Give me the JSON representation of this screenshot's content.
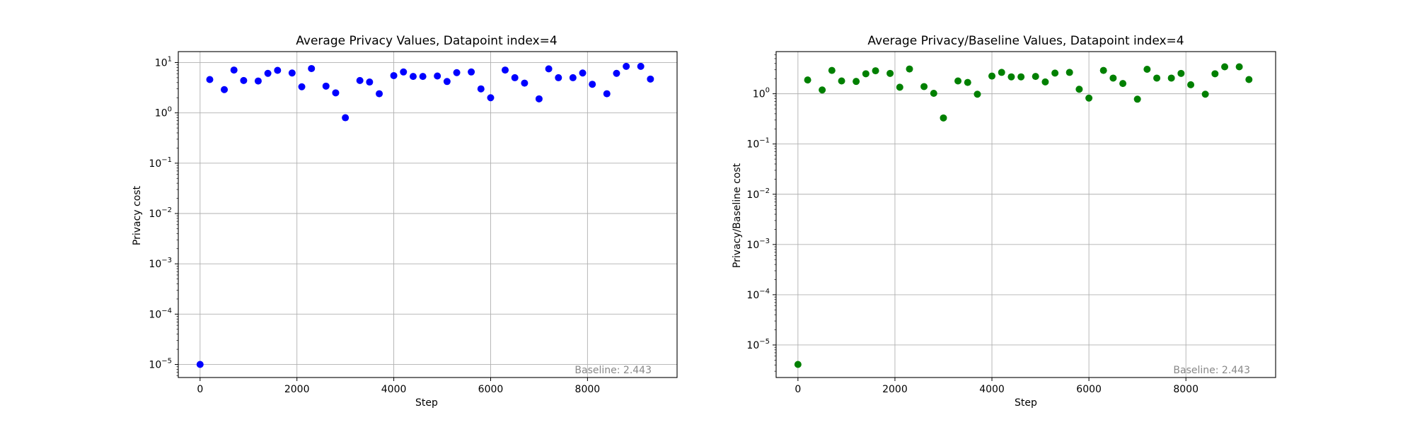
{
  "chart_data": [
    {
      "type": "scatter",
      "title": "Average Privacy Values, Datapoint index=4",
      "xlabel": "Step",
      "ylabel": "Privacy cost",
      "yscale": "log",
      "grid": true,
      "xlim": [
        -450,
        9850
      ],
      "ylim": [
        5.5e-06,
        16.5
      ],
      "xticks": [
        0,
        2000,
        4000,
        6000,
        8000
      ],
      "xtick_labels": [
        "0",
        "2000",
        "4000",
        "6000",
        "8000"
      ],
      "yticks_exp": [
        -5,
        -4,
        -3,
        -2,
        -1,
        0,
        1
      ],
      "annotation": "Baseline: 2.443",
      "color": "#0000ff",
      "series": [
        {
          "x": [
            0,
            200,
            500,
            700,
            900,
            1200,
            1400,
            1600,
            1900,
            2100,
            2300,
            2600,
            2800,
            3000,
            3300,
            3500,
            3700,
            4000,
            4200,
            4400,
            4600,
            4900,
            5100,
            5300,
            5600,
            5800,
            6000,
            6300,
            6500,
            6700,
            7000,
            7200,
            7400,
            7700,
            7900,
            8100,
            8400,
            8600,
            8800,
            9100,
            9300
          ],
          "y": [
            1e-05,
            4.6,
            2.9,
            7.1,
            4.4,
            4.3,
            6.1,
            7.0,
            6.2,
            3.3,
            7.6,
            3.4,
            2.5,
            0.8,
            4.4,
            4.1,
            2.4,
            5.5,
            6.5,
            5.3,
            5.3,
            5.4,
            4.2,
            6.3,
            6.5,
            3.0,
            2.0,
            7.1,
            5.0,
            3.9,
            1.9,
            7.5,
            5.0,
            5.0,
            6.2,
            3.7,
            2.4,
            6.1,
            8.4,
            8.4,
            4.7
          ]
        }
      ]
    },
    {
      "type": "scatter",
      "title": "Average Privacy/Baseline Values, Datapoint index=4",
      "xlabel": "Step",
      "ylabel": "Privacy/Baseline cost",
      "yscale": "log",
      "grid": true,
      "xlim": [
        -450,
        9850
      ],
      "ylim": [
        2.25e-06,
        6.9
      ],
      "xticks": [
        0,
        2000,
        4000,
        6000,
        8000
      ],
      "xtick_labels": [
        "0",
        "2000",
        "4000",
        "6000",
        "8000"
      ],
      "yticks_exp": [
        -5,
        -4,
        -3,
        -2,
        -1,
        0
      ],
      "annotation": "Baseline: 2.443",
      "color": "#008000",
      "series": [
        {
          "x": [
            0,
            200,
            500,
            700,
            900,
            1200,
            1400,
            1600,
            1900,
            2100,
            2300,
            2600,
            2800,
            3000,
            3300,
            3500,
            3700,
            4000,
            4200,
            4400,
            4600,
            4900,
            5100,
            5300,
            5600,
            5800,
            6000,
            6300,
            6500,
            6700,
            7000,
            7200,
            7400,
            7700,
            7900,
            8100,
            8400,
            8600,
            8800,
            9100,
            9300
          ],
          "y": [
            4.1e-06,
            1.88,
            1.19,
            2.91,
            1.8,
            1.76,
            2.5,
            2.87,
            2.54,
            1.35,
            3.11,
            1.39,
            1.02,
            0.33,
            1.8,
            1.68,
            0.98,
            2.25,
            2.66,
            2.17,
            2.17,
            2.21,
            1.72,
            2.58,
            2.66,
            1.23,
            0.82,
            2.91,
            2.05,
            1.6,
            0.78,
            3.07,
            2.05,
            2.05,
            2.54,
            1.51,
            0.98,
            2.5,
            3.44,
            3.44,
            1.92
          ]
        }
      ]
    }
  ]
}
